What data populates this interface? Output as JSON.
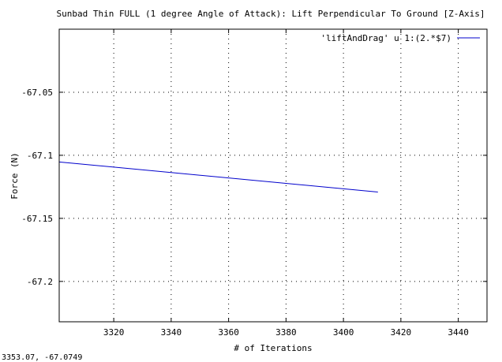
{
  "chart_data": {
    "type": "line",
    "title": "Sunbad Thin FULL (1 degree Angle of Attack): Lift Perpendicular To Ground [Z-Axis]",
    "xlabel": "# of Iterations",
    "ylabel": "Force (N)",
    "xlim": [
      3301,
      3450
    ],
    "ylim": [
      -67.232,
      -67.0
    ],
    "x_ticks": [
      3320,
      3340,
      3360,
      3380,
      3400,
      3420,
      3440
    ],
    "y_ticks": [
      -67.05,
      -67.1,
      -67.15,
      -67.2
    ],
    "y_tick_labels": [
      "-67.05",
      "-67.1",
      "-67.15",
      "-67.2"
    ],
    "grid": true,
    "legend_position": "top-right",
    "series": [
      {
        "name": "'liftAndDrag' u 1:(2.*$7)",
        "color": "#0000cc",
        "x": [
          3301,
          3412
        ],
        "y": [
          -67.1053,
          -67.1291
        ]
      }
    ]
  },
  "status_text": "3353.07,  -67.0749"
}
